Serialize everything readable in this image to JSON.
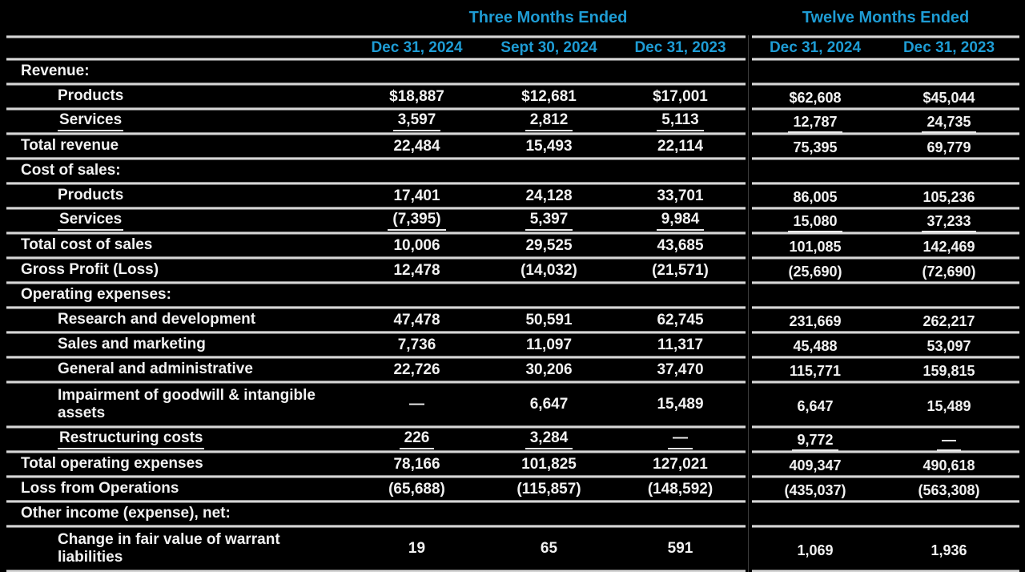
{
  "colors": {
    "background": "#000000",
    "text": "#f2f2f2",
    "accent": "#1e9cd4",
    "divider": "#e0e0e0"
  },
  "table": {
    "group_headers": [
      {
        "label": "Three Months Ended"
      },
      {
        "label": "Twelve Months Ended"
      }
    ],
    "columns": [
      "Dec 31, 2024",
      "Sept 30, 2024",
      "Dec 31, 2023",
      "Dec 31, 2024",
      "Dec 31, 2023"
    ],
    "rows": [
      {
        "type": "section",
        "label": "Revenue:",
        "values": [
          "",
          "",
          "",
          "",
          ""
        ]
      },
      {
        "type": "item",
        "label": "Products",
        "values": [
          "$18,887",
          "$12,681",
          "$17,001",
          "$62,608",
          "$45,044"
        ]
      },
      {
        "type": "item-underline",
        "label": "Services",
        "values": [
          "3,597",
          "2,812",
          "5,113",
          "12,787",
          "24,735"
        ]
      },
      {
        "type": "total",
        "label": "Total revenue",
        "values": [
          "22,484",
          "15,493",
          "22,114",
          "75,395",
          "69,779"
        ]
      },
      {
        "type": "section",
        "label": "Cost of sales:",
        "values": [
          "",
          "",
          "",
          "",
          ""
        ]
      },
      {
        "type": "item",
        "label": "Products",
        "values": [
          "17,401",
          "24,128",
          "33,701",
          "86,005",
          "105,236"
        ]
      },
      {
        "type": "item-underline",
        "label": "Services",
        "values": [
          "(7,395)",
          "5,397",
          "9,984",
          "15,080",
          "37,233"
        ]
      },
      {
        "type": "total",
        "label": "Total cost of sales",
        "values": [
          "10,006",
          "29,525",
          "43,685",
          "101,085",
          "142,469"
        ]
      },
      {
        "type": "total",
        "label": "Gross Profit (Loss)",
        "values": [
          "12,478",
          "(14,032)",
          "(21,571)",
          "(25,690)",
          "(72,690)"
        ]
      },
      {
        "type": "section",
        "label": "Operating expenses:",
        "values": [
          "",
          "",
          "",
          "",
          ""
        ]
      },
      {
        "type": "item",
        "label": "Research and development",
        "values": [
          "47,478",
          "50,591",
          "62,745",
          "231,669",
          "262,217"
        ]
      },
      {
        "type": "item",
        "label": "Sales and marketing",
        "values": [
          "7,736",
          "11,097",
          "11,317",
          "45,488",
          "53,097"
        ]
      },
      {
        "type": "item",
        "label": "General and administrative",
        "values": [
          "22,726",
          "30,206",
          "37,470",
          "115,771",
          "159,815"
        ]
      },
      {
        "type": "item",
        "label": "Impairment of goodwill & intangible assets",
        "values": [
          "—",
          "6,647",
          "15,489",
          "6,647",
          "15,489"
        ]
      },
      {
        "type": "item-underline",
        "label": "Restructuring costs",
        "values": [
          "226",
          "3,284",
          "—",
          "9,772",
          "—"
        ]
      },
      {
        "type": "total",
        "label": "Total operating expenses",
        "values": [
          "78,166",
          "101,825",
          "127,021",
          "409,347",
          "490,618"
        ]
      },
      {
        "type": "total",
        "label": "Loss from Operations",
        "values": [
          "(65,688)",
          "(115,857)",
          "(148,592)",
          "(435,037)",
          "(563,308)"
        ]
      },
      {
        "type": "section",
        "label": "Other income (expense), net:",
        "values": [
          "",
          "",
          "",
          "",
          ""
        ]
      },
      {
        "type": "item",
        "label": "Change in fair value of warrant liabilities",
        "values": [
          "19",
          "65",
          "591",
          "1,069",
          "1,936"
        ]
      }
    ]
  }
}
